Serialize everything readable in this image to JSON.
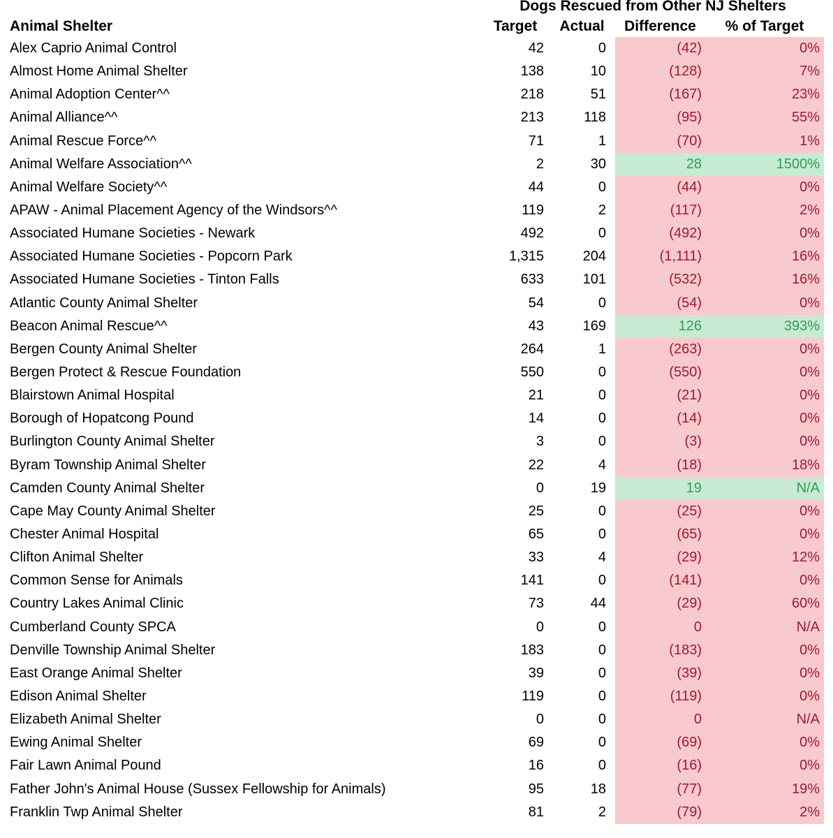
{
  "colors": {
    "under_fill": "#f8c9cd",
    "under_text": "#9c1b30",
    "over_fill": "#c8ead3",
    "over_text": "#2f9e55"
  },
  "chart_data": {
    "type": "table",
    "title": "Dogs Rescued from Other NJ Shelters",
    "columns": [
      "Animal Shelter",
      "Target",
      "Actual",
      "Difference",
      "% of Target"
    ],
    "legend_note": "rows where Actual exceeds Target are highlighted green; shortfalls are highlighted red",
    "rows": [
      {
        "shelter": "Alex Caprio Animal Control",
        "target": "42",
        "actual": "0",
        "difference": "(42)",
        "pct_of_target": "0%",
        "highlight": "under"
      },
      {
        "shelter": "Almost Home Animal Shelter",
        "target": "138",
        "actual": "10",
        "difference": "(128)",
        "pct_of_target": "7%",
        "highlight": "under"
      },
      {
        "shelter": "Animal Adoption Center^^",
        "target": "218",
        "actual": "51",
        "difference": "(167)",
        "pct_of_target": "23%",
        "highlight": "under"
      },
      {
        "shelter": "Animal Alliance^^",
        "target": "213",
        "actual": "118",
        "difference": "(95)",
        "pct_of_target": "55%",
        "highlight": "under"
      },
      {
        "shelter": "Animal Rescue Force^^",
        "target": "71",
        "actual": "1",
        "difference": "(70)",
        "pct_of_target": "1%",
        "highlight": "under"
      },
      {
        "shelter": "Animal Welfare Association^^",
        "target": "2",
        "actual": "30",
        "difference": "28",
        "pct_of_target": "1500%",
        "highlight": "over"
      },
      {
        "shelter": "Animal Welfare Society^^",
        "target": "44",
        "actual": "0",
        "difference": "(44)",
        "pct_of_target": "0%",
        "highlight": "under"
      },
      {
        "shelter": "APAW - Animal Placement Agency of the Windsors^^",
        "target": "119",
        "actual": "2",
        "difference": "(117)",
        "pct_of_target": "2%",
        "highlight": "under"
      },
      {
        "shelter": "Associated Humane Societies - Newark",
        "target": "492",
        "actual": "0",
        "difference": "(492)",
        "pct_of_target": "0%",
        "highlight": "under"
      },
      {
        "shelter": "Associated Humane Societies - Popcorn Park",
        "target": "1,315",
        "actual": "204",
        "difference": "(1,111)",
        "pct_of_target": "16%",
        "highlight": "under"
      },
      {
        "shelter": "Associated Humane Societies - Tinton Falls",
        "target": "633",
        "actual": "101",
        "difference": "(532)",
        "pct_of_target": "16%",
        "highlight": "under"
      },
      {
        "shelter": "Atlantic County Animal Shelter",
        "target": "54",
        "actual": "0",
        "difference": "(54)",
        "pct_of_target": "0%",
        "highlight": "under"
      },
      {
        "shelter": "Beacon Animal Rescue^^",
        "target": "43",
        "actual": "169",
        "difference": "126",
        "pct_of_target": "393%",
        "highlight": "over"
      },
      {
        "shelter": "Bergen County Animal Shelter",
        "target": "264",
        "actual": "1",
        "difference": "(263)",
        "pct_of_target": "0%",
        "highlight": "under"
      },
      {
        "shelter": "Bergen Protect & Rescue Foundation",
        "target": "550",
        "actual": "0",
        "difference": "(550)",
        "pct_of_target": "0%",
        "highlight": "under"
      },
      {
        "shelter": "Blairstown Animal Hospital",
        "target": "21",
        "actual": "0",
        "difference": "(21)",
        "pct_of_target": "0%",
        "highlight": "under"
      },
      {
        "shelter": "Borough of Hopatcong Pound",
        "target": "14",
        "actual": "0",
        "difference": "(14)",
        "pct_of_target": "0%",
        "highlight": "under"
      },
      {
        "shelter": "Burlington County Animal Shelter",
        "target": "3",
        "actual": "0",
        "difference": "(3)",
        "pct_of_target": "0%",
        "highlight": "under"
      },
      {
        "shelter": "Byram Township Animal Shelter",
        "target": "22",
        "actual": "4",
        "difference": "(18)",
        "pct_of_target": "18%",
        "highlight": "under"
      },
      {
        "shelter": "Camden County Animal Shelter",
        "target": "0",
        "actual": "19",
        "difference": "19",
        "pct_of_target": "N/A",
        "highlight": "over"
      },
      {
        "shelter": "Cape May County Animal Shelter",
        "target": "25",
        "actual": "0",
        "difference": "(25)",
        "pct_of_target": "0%",
        "highlight": "under"
      },
      {
        "shelter": "Chester Animal Hospital",
        "target": "65",
        "actual": "0",
        "difference": "(65)",
        "pct_of_target": "0%",
        "highlight": "under"
      },
      {
        "shelter": "Clifton Animal Shelter",
        "target": "33",
        "actual": "4",
        "difference": "(29)",
        "pct_of_target": "12%",
        "highlight": "under"
      },
      {
        "shelter": "Common Sense for Animals",
        "target": "141",
        "actual": "0",
        "difference": "(141)",
        "pct_of_target": "0%",
        "highlight": "under"
      },
      {
        "shelter": "Country Lakes Animal Clinic",
        "target": "73",
        "actual": "44",
        "difference": "(29)",
        "pct_of_target": "60%",
        "highlight": "under"
      },
      {
        "shelter": "Cumberland County SPCA",
        "target": "0",
        "actual": "0",
        "difference": "0",
        "pct_of_target": "N/A",
        "highlight": "under"
      },
      {
        "shelter": "Denville Township Animal Shelter",
        "target": "183",
        "actual": "0",
        "difference": "(183)",
        "pct_of_target": "0%",
        "highlight": "under"
      },
      {
        "shelter": "East Orange Animal Shelter",
        "target": "39",
        "actual": "0",
        "difference": "(39)",
        "pct_of_target": "0%",
        "highlight": "under"
      },
      {
        "shelter": "Edison Animal Shelter",
        "target": "119",
        "actual": "0",
        "difference": "(119)",
        "pct_of_target": "0%",
        "highlight": "under"
      },
      {
        "shelter": "Elizabeth Animal Shelter",
        "target": "0",
        "actual": "0",
        "difference": "0",
        "pct_of_target": "N/A",
        "highlight": "under"
      },
      {
        "shelter": "Ewing Animal Shelter",
        "target": "69",
        "actual": "0",
        "difference": "(69)",
        "pct_of_target": "0%",
        "highlight": "under"
      },
      {
        "shelter": "Fair Lawn Animal Pound",
        "target": "16",
        "actual": "0",
        "difference": "(16)",
        "pct_of_target": "0%",
        "highlight": "under"
      },
      {
        "shelter": "Father John's Animal House (Sussex Fellowship for Animals)",
        "target": "95",
        "actual": "18",
        "difference": "(77)",
        "pct_of_target": "19%",
        "highlight": "under"
      },
      {
        "shelter": "Franklin Twp Animal Shelter",
        "target": "81",
        "actual": "2",
        "difference": "(79)",
        "pct_of_target": "2%",
        "highlight": "under"
      }
    ]
  }
}
